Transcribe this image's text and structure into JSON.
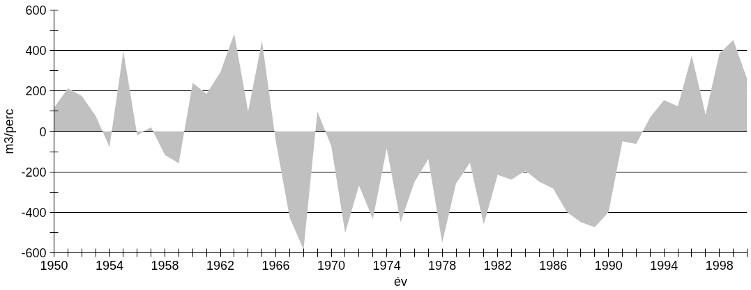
{
  "chart_data": {
    "type": "area",
    "xlabel": "év",
    "ylabel": "m3/perc",
    "x": [
      1950,
      1951,
      1952,
      1953,
      1954,
      1955,
      1956,
      1957,
      1958,
      1959,
      1960,
      1961,
      1962,
      1963,
      1964,
      1965,
      1966,
      1967,
      1968,
      1969,
      1970,
      1971,
      1972,
      1973,
      1974,
      1975,
      1976,
      1977,
      1978,
      1979,
      1980,
      1981,
      1982,
      1983,
      1984,
      1985,
      1986,
      1987,
      1988,
      1989,
      1990,
      1991,
      1992,
      1993,
      1994,
      1995,
      1996,
      1997,
      1998,
      1999,
      2000
    ],
    "series": [
      {
        "color": "#c0c0c0",
        "values": [
          117,
          213,
          175,
          77,
          -77,
          397,
          -19,
          21,
          -117,
          -157,
          240,
          186,
          293,
          483,
          98,
          448,
          -50,
          -426,
          -584,
          99,
          -72,
          -502,
          -267,
          -433,
          -83,
          -449,
          -250,
          -137,
          -550,
          -257,
          -155,
          -460,
          -215,
          -238,
          -194,
          -248,
          -282,
          -399,
          -449,
          -474,
          -399,
          -49,
          -62,
          70,
          155,
          125,
          376,
          83,
          385,
          452,
          259
        ]
      }
    ],
    "xlim": [
      1950,
      2000
    ],
    "xticks": [
      1950,
      {
        "value": 1951,
        "label": null
      },
      {
        "value": 1952,
        "label": null
      },
      {
        "value": 1953,
        "label": null
      },
      1954,
      {
        "value": 1955,
        "label": null
      },
      {
        "value": 1956,
        "label": null
      },
      {
        "value": 1957,
        "label": null
      },
      1958,
      {
        "value": 1959,
        "label": null
      },
      {
        "value": 1960,
        "label": null
      },
      {
        "value": 1961,
        "label": null
      },
      1962,
      {
        "value": 1963,
        "label": null
      },
      {
        "value": 1964,
        "label": null
      },
      {
        "value": 1965,
        "label": null
      },
      1966,
      {
        "value": 1967,
        "label": null
      },
      {
        "value": 1968,
        "label": null
      },
      {
        "value": 1969,
        "label": null
      },
      1970,
      {
        "value": 1971,
        "label": null
      },
      {
        "value": 1972,
        "label": null
      },
      {
        "value": 1973,
        "label": null
      },
      1974,
      {
        "value": 1975,
        "label": null
      },
      {
        "value": 1976,
        "label": null
      },
      {
        "value": 1977,
        "label": null
      },
      1978,
      {
        "value": 1979,
        "label": null
      },
      {
        "value": 1980,
        "label": null
      },
      {
        "value": 1981,
        "label": null
      },
      1982,
      {
        "value": 1983,
        "label": null
      },
      {
        "value": 1984,
        "label": null
      },
      {
        "value": 1985,
        "label": null
      },
      1986,
      {
        "value": 1987,
        "label": null
      },
      {
        "value": 1988,
        "label": null
      },
      {
        "value": 1989,
        "label": null
      },
      1990,
      {
        "value": 1991,
        "label": null
      },
      {
        "value": 1992,
        "label": null
      },
      {
        "value": 1993,
        "label": null
      },
      1994,
      {
        "value": 1995,
        "label": null
      },
      {
        "value": 1996,
        "label": null
      },
      {
        "value": 1997,
        "label": null
      },
      1998,
      {
        "value": 1999,
        "label": null
      },
      {
        "value": 2000,
        "label": null
      }
    ],
    "ylim": [
      -600,
      600
    ],
    "yticks": [
      -600,
      {
        "value": -500,
        "label": null
      },
      -400,
      {
        "value": -300,
        "label": null
      },
      -200,
      {
        "value": -100,
        "label": null
      },
      0,
      {
        "value": 100,
        "label": null
      },
      200,
      {
        "value": 300,
        "label": null
      },
      400,
      {
        "value": 500,
        "label": null
      },
      600
    ],
    "grid": "y"
  }
}
